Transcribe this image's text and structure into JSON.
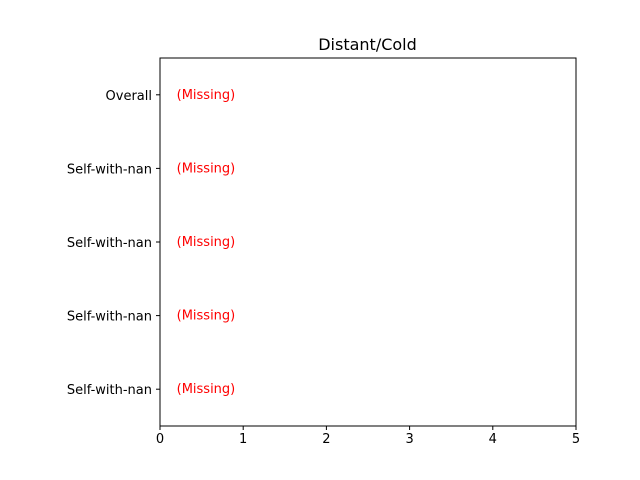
{
  "chart_data": {
    "type": "bar",
    "orientation": "horizontal",
    "title": "Distant/Cold",
    "xlabel": "",
    "ylabel": "",
    "xlim": [
      0,
      5
    ],
    "x_ticks": [
      "0",
      "1",
      "2",
      "3",
      "4",
      "5"
    ],
    "categories": [
      "Overall",
      "Self-with-nan",
      "Self-with-nan",
      "Self-with-nan",
      "Self-with-nan"
    ],
    "values": [
      null,
      null,
      null,
      null,
      null
    ],
    "missing_label": "(Missing)",
    "missing_color": "#ff0000",
    "grid": false,
    "legend": false
  }
}
